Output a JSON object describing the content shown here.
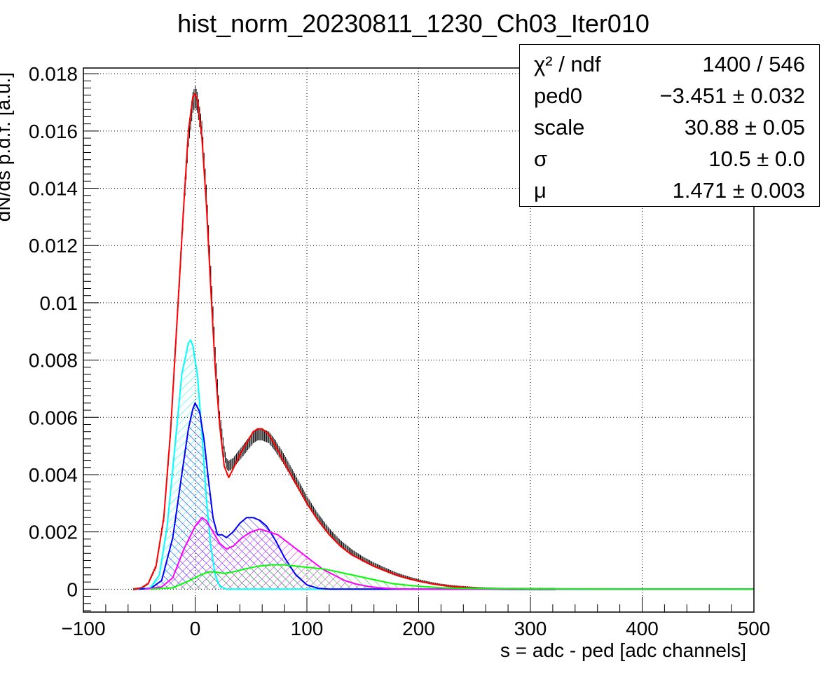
{
  "chart_data": {
    "type": "line",
    "title": "hist_norm_20230811_1230_Ch03_Iter010",
    "xlabel": "s = adc - ped [adc channels]",
    "ylabel": "dN/ds p.d.f. [a.u.]",
    "xlim": [
      -100,
      500
    ],
    "ylim": [
      -0.0008,
      0.0182
    ],
    "x_ticks": [
      -100,
      0,
      100,
      200,
      300,
      400,
      500
    ],
    "x_tick_labels": [
      "−100",
      "0",
      "100",
      "200",
      "300",
      "400",
      "500"
    ],
    "y_ticks": [
      0,
      0.002,
      0.004,
      0.006,
      0.008,
      0.01,
      0.012,
      0.014,
      0.016,
      0.018
    ],
    "y_tick_labels": [
      "0",
      "0.002",
      "0.004",
      "0.006",
      "0.008",
      "0.01",
      "0.012",
      "0.014",
      "0.016",
      "0.018"
    ],
    "grid": true,
    "series": [
      {
        "color": "#000000",
        "style": "histogram-errors",
        "points": [
          [
            -55,
            0
          ],
          [
            -48,
            3e-05
          ],
          [
            -42,
            0.0002
          ],
          [
            -35,
            0.0008
          ],
          [
            -28,
            0.0025
          ],
          [
            -22,
            0.0055
          ],
          [
            -16,
            0.0095
          ],
          [
            -10,
            0.0135
          ],
          [
            -6,
            0.0158
          ],
          [
            -2,
            0.017
          ],
          [
            0,
            0.0172
          ],
          [
            2,
            0.017
          ],
          [
            6,
            0.016
          ],
          [
            10,
            0.0138
          ],
          [
            14,
            0.011
          ],
          [
            18,
            0.0082
          ],
          [
            22,
            0.006
          ],
          [
            26,
            0.0048
          ],
          [
            28,
            0.0044
          ],
          [
            30,
            0.0043
          ],
          [
            34,
            0.0044
          ],
          [
            40,
            0.0047
          ],
          [
            46,
            0.005
          ],
          [
            52,
            0.0053
          ],
          [
            56,
            0.0054
          ],
          [
            60,
            0.0054
          ],
          [
            66,
            0.0053
          ],
          [
            72,
            0.005
          ],
          [
            80,
            0.0045
          ],
          [
            90,
            0.0038
          ],
          [
            100,
            0.0031
          ],
          [
            110,
            0.0025
          ],
          [
            120,
            0.002
          ],
          [
            130,
            0.0016
          ],
          [
            140,
            0.0013
          ],
          [
            150,
            0.00105
          ],
          [
            160,
            0.00085
          ],
          [
            170,
            0.00068
          ],
          [
            180,
            0.00052
          ],
          [
            190,
            0.0004
          ],
          [
            200,
            0.0003
          ],
          [
            210,
            0.00022
          ],
          [
            220,
            0.00015
          ],
          [
            230,
            0.0001
          ],
          [
            240,
            7e-05
          ],
          [
            250,
            4e-05
          ],
          [
            260,
            2e-05
          ],
          [
            270,
            1e-05
          ],
          [
            280,
            5e-06
          ],
          [
            300,
            3e-06
          ],
          [
            322,
            2e-06
          ]
        ]
      },
      {
        "color": "#ff0000",
        "style": "line",
        "points": [
          [
            -55,
            0
          ],
          [
            -48,
            5e-05
          ],
          [
            -42,
            0.0002
          ],
          [
            -35,
            0.0008
          ],
          [
            -28,
            0.0025
          ],
          [
            -22,
            0.0055
          ],
          [
            -16,
            0.0095
          ],
          [
            -10,
            0.0135
          ],
          [
            -6,
            0.016
          ],
          [
            -2,
            0.0172
          ],
          [
            0,
            0.0173
          ],
          [
            2,
            0.0171
          ],
          [
            6,
            0.0158
          ],
          [
            10,
            0.0135
          ],
          [
            14,
            0.0105
          ],
          [
            18,
            0.0077
          ],
          [
            22,
            0.0057
          ],
          [
            26,
            0.0043
          ],
          [
            30,
            0.0039
          ],
          [
            34,
            0.0042
          ],
          [
            40,
            0.0047
          ],
          [
            46,
            0.0051
          ],
          [
            52,
            0.0055
          ],
          [
            56,
            0.0056
          ],
          [
            60,
            0.0056
          ],
          [
            66,
            0.0054
          ],
          [
            72,
            0.005
          ],
          [
            80,
            0.0044
          ],
          [
            90,
            0.0037
          ],
          [
            100,
            0.003
          ],
          [
            110,
            0.0024
          ],
          [
            120,
            0.0019
          ],
          [
            130,
            0.0015
          ],
          [
            140,
            0.0012
          ],
          [
            150,
            0.001
          ],
          [
            160,
            0.0008
          ],
          [
            170,
            0.00065
          ],
          [
            180,
            0.0005
          ],
          [
            190,
            0.00038
          ],
          [
            200,
            0.00028
          ],
          [
            210,
            0.0002
          ],
          [
            220,
            0.00014
          ],
          [
            230,
            0.0001
          ],
          [
            240,
            6e-05
          ],
          [
            250,
            4e-05
          ],
          [
            260,
            2e-05
          ],
          [
            280,
            1e-05
          ],
          [
            300,
            5e-06
          ],
          [
            322,
            2e-06
          ]
        ]
      },
      {
        "color": "#00ffff",
        "style": "hatched",
        "points": [
          [
            -50,
            0
          ],
          [
            -40,
            5e-05
          ],
          [
            -32,
            0.0005
          ],
          [
            -25,
            0.0022
          ],
          [
            -18,
            0.005
          ],
          [
            -12,
            0.0075
          ],
          [
            -6,
            0.0086
          ],
          [
            -4,
            0.0087
          ],
          [
            -2,
            0.0085
          ],
          [
            2,
            0.0075
          ],
          [
            6,
            0.0055
          ],
          [
            10,
            0.0032
          ],
          [
            14,
            0.0015
          ],
          [
            18,
            0.0005
          ],
          [
            22,
            0.0001
          ],
          [
            28,
            0
          ],
          [
            500,
            0
          ]
        ]
      },
      {
        "color": "#0000ff",
        "style": "hatched",
        "points": [
          [
            -50,
            0
          ],
          [
            -40,
            2e-05
          ],
          [
            -30,
            0.0003
          ],
          [
            -20,
            0.0018
          ],
          [
            -12,
            0.004
          ],
          [
            -6,
            0.0056
          ],
          [
            -2,
            0.0063
          ],
          [
            0,
            0.0065
          ],
          [
            4,
            0.0062
          ],
          [
            8,
            0.0052
          ],
          [
            12,
            0.0038
          ],
          [
            16,
            0.0025
          ],
          [
            20,
            0.0019
          ],
          [
            24,
            0.0019
          ],
          [
            28,
            0.0018
          ],
          [
            34,
            0.002
          ],
          [
            40,
            0.0023
          ],
          [
            46,
            0.0025
          ],
          [
            52,
            0.0025
          ],
          [
            58,
            0.0024
          ],
          [
            64,
            0.0022
          ],
          [
            72,
            0.0017
          ],
          [
            80,
            0.0011
          ],
          [
            90,
            0.0005
          ],
          [
            100,
            0.00015
          ],
          [
            110,
            3e-05
          ],
          [
            120,
            0
          ],
          [
            500,
            0
          ]
        ]
      },
      {
        "color": "#ff00ff",
        "style": "hatched",
        "points": [
          [
            -45,
            0
          ],
          [
            -30,
            8e-05
          ],
          [
            -20,
            0.0004
          ],
          [
            -10,
            0.0014
          ],
          [
            0,
            0.0022
          ],
          [
            6,
            0.0025
          ],
          [
            10,
            0.0024
          ],
          [
            16,
            0.002
          ],
          [
            22,
            0.0016
          ],
          [
            28,
            0.0014
          ],
          [
            34,
            0.0015
          ],
          [
            42,
            0.0018
          ],
          [
            50,
            0.002
          ],
          [
            58,
            0.0021
          ],
          [
            66,
            0.002
          ],
          [
            74,
            0.0019
          ],
          [
            84,
            0.0016
          ],
          [
            94,
            0.0013
          ],
          [
            104,
            0.001
          ],
          [
            114,
            0.0007
          ],
          [
            124,
            0.0005
          ],
          [
            134,
            0.0003
          ],
          [
            144,
            0.00018
          ],
          [
            154,
            0.0001
          ],
          [
            164,
            5e-05
          ],
          [
            176,
            2e-05
          ],
          [
            190,
            0
          ],
          [
            500,
            0
          ]
        ]
      },
      {
        "color": "#00ff00",
        "style": "hatched",
        "points": [
          [
            -40,
            0
          ],
          [
            -20,
            5e-05
          ],
          [
            -5,
            0.0003
          ],
          [
            5,
            0.0005
          ],
          [
            12,
            0.0006
          ],
          [
            18,
            0.0006
          ],
          [
            26,
            0.00055
          ],
          [
            34,
            0.0006
          ],
          [
            44,
            0.0007
          ],
          [
            56,
            0.0008
          ],
          [
            68,
            0.00085
          ],
          [
            80,
            0.00085
          ],
          [
            92,
            0.0008
          ],
          [
            104,
            0.00075
          ],
          [
            116,
            0.0007
          ],
          [
            128,
            0.0006
          ],
          [
            140,
            0.0005
          ],
          [
            152,
            0.0004
          ],
          [
            164,
            0.0003
          ],
          [
            176,
            0.0002
          ],
          [
            190,
            0.00014
          ],
          [
            205,
            9e-05
          ],
          [
            220,
            5e-05
          ],
          [
            240,
            3e-05
          ],
          [
            260,
            2e-05
          ],
          [
            300,
            1e-05
          ],
          [
            400,
            5e-06
          ],
          [
            500,
            2e-06
          ]
        ]
      }
    ],
    "stats": [
      {
        "name": "χ² / ndf",
        "value": "1400 / 546"
      },
      {
        "name": "ped0",
        "value": "−3.451 ± 0.032"
      },
      {
        "name": "scale",
        "value": "30.88 ± 0.05"
      },
      {
        "name": "σ",
        "value": "10.5 ± 0.0"
      },
      {
        "name": "μ",
        "value": "1.471 ± 0.003"
      }
    ]
  }
}
